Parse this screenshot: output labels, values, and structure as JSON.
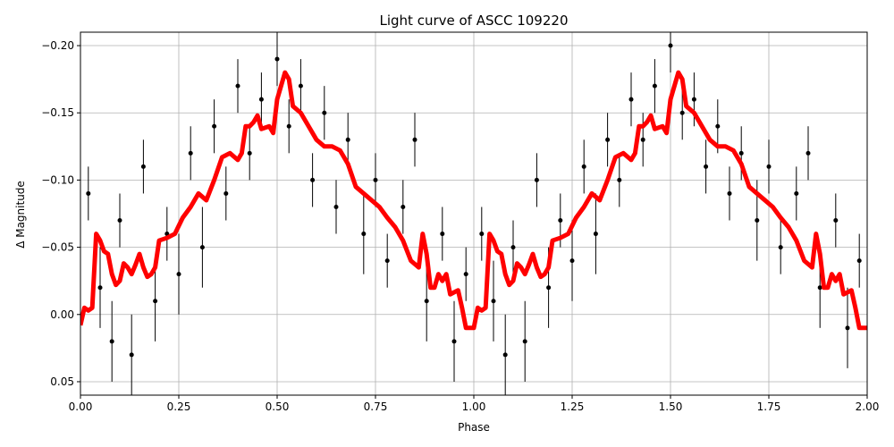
{
  "chart_data": {
    "type": "scatter",
    "title": "Light curve of ASCC 109220",
    "x_label": "Phase",
    "y_label": "Δ Magnitude",
    "xlim": [
      0,
      2
    ],
    "ylim": [
      0.06,
      -0.21
    ],
    "inverted_y": true,
    "grid": true,
    "xticks": [
      {
        "value": 0,
        "label": "0.00"
      },
      {
        "value": 0.25,
        "label": "0.25"
      },
      {
        "value": 0.5,
        "label": "0.50"
      },
      {
        "value": 0.75,
        "label": "0.75"
      },
      {
        "value": 1,
        "label": "1.00"
      },
      {
        "value": 1.25,
        "label": "1.25"
      },
      {
        "value": 1.5,
        "label": "1.50"
      },
      {
        "value": 1.75,
        "label": "1.75"
      },
      {
        "value": 2,
        "label": "2.00"
      }
    ],
    "yticks": [
      {
        "value": -0.2,
        "label": "−0.20"
      },
      {
        "value": -0.15,
        "label": "−0.15"
      },
      {
        "value": -0.1,
        "label": "−0.10"
      },
      {
        "value": -0.05,
        "label": "−0.05"
      },
      {
        "value": 0,
        "label": "0.00"
      },
      {
        "value": 0.05,
        "label": "0.05"
      }
    ],
    "points": {
      "color": "#000000",
      "x": [
        0.02,
        0.05,
        0.08,
        0.1,
        0.13,
        0.16,
        0.19,
        0.22,
        0.25,
        0.28,
        0.31,
        0.34,
        0.37,
        0.4,
        0.43,
        0.46,
        0.5,
        0.53,
        0.56,
        0.59,
        0.62,
        0.65,
        0.68,
        0.72,
        0.75,
        0.78,
        0.82,
        0.85,
        0.88,
        0.92,
        0.95,
        0.98,
        1.02,
        1.05,
        1.08,
        1.1,
        1.13,
        1.16,
        1.19,
        1.22,
        1.25,
        1.28,
        1.31,
        1.34,
        1.37,
        1.4,
        1.43,
        1.46,
        1.5,
        1.53,
        1.56,
        1.59,
        1.62,
        1.65,
        1.68,
        1.72,
        1.75,
        1.78,
        1.82,
        1.85,
        1.88,
        1.92,
        1.95,
        1.98
      ],
      "values": [
        -0.09,
        -0.02,
        0.02,
        -0.07,
        0.03,
        -0.11,
        -0.01,
        -0.06,
        -0.03,
        -0.12,
        -0.05,
        -0.14,
        -0.09,
        -0.17,
        -0.12,
        -0.16,
        -0.19,
        -0.14,
        -0.17,
        -0.1,
        -0.15,
        -0.08,
        -0.13,
        -0.06,
        -0.1,
        -0.04,
        -0.08,
        -0.13,
        -0.01,
        -0.06,
        0.02,
        -0.03,
        -0.06,
        -0.01,
        0.03,
        -0.05,
        0.02,
        -0.1,
        -0.02,
        -0.07,
        -0.04,
        -0.11,
        -0.06,
        -0.13,
        -0.1,
        -0.16,
        -0.13,
        -0.17,
        -0.2,
        -0.15,
        -0.16,
        -0.11,
        -0.14,
        -0.09,
        -0.12,
        -0.07,
        -0.11,
        -0.05,
        -0.09,
        -0.12,
        -0.02,
        -0.07,
        0.01,
        -0.04
      ],
      "errors": [
        0.02,
        0.03,
        0.03,
        0.02,
        0.03,
        0.02,
        0.03,
        0.02,
        0.03,
        0.02,
        0.03,
        0.02,
        0.02,
        0.02,
        0.02,
        0.02,
        0.02,
        0.02,
        0.02,
        0.02,
        0.02,
        0.02,
        0.02,
        0.03,
        0.02,
        0.02,
        0.02,
        0.02,
        0.03,
        0.02,
        0.03,
        0.02,
        0.02,
        0.03,
        0.03,
        0.02,
        0.03,
        0.02,
        0.03,
        0.02,
        0.03,
        0.02,
        0.03,
        0.02,
        0.02,
        0.02,
        0.02,
        0.02,
        0.02,
        0.02,
        0.02,
        0.02,
        0.02,
        0.02,
        0.02,
        0.03,
        0.02,
        0.02,
        0.02,
        0.02,
        0.03,
        0.02,
        0.03,
        0.02
      ]
    },
    "curve": {
      "color": "#ff0000",
      "x": [
        0.0,
        0.01,
        0.02,
        0.03,
        0.04,
        0.05,
        0.06,
        0.07,
        0.08,
        0.09,
        0.1,
        0.11,
        0.12,
        0.13,
        0.14,
        0.15,
        0.16,
        0.17,
        0.18,
        0.19,
        0.2,
        0.22,
        0.24,
        0.26,
        0.28,
        0.3,
        0.32,
        0.34,
        0.36,
        0.38,
        0.4,
        0.41,
        0.42,
        0.43,
        0.44,
        0.45,
        0.46,
        0.48,
        0.49,
        0.5,
        0.52,
        0.53,
        0.54,
        0.56,
        0.58,
        0.6,
        0.62,
        0.64,
        0.66,
        0.68,
        0.7,
        0.72,
        0.74,
        0.76,
        0.78,
        0.8,
        0.82,
        0.84,
        0.86,
        0.87,
        0.88,
        0.89,
        0.9,
        0.91,
        0.92,
        0.93,
        0.94,
        0.96,
        0.97,
        0.98,
        0.99,
        1.0,
        1.01,
        1.02,
        1.03,
        1.04,
        1.05,
        1.06,
        1.07,
        1.08,
        1.09,
        1.1,
        1.11,
        1.12,
        1.13,
        1.14,
        1.15,
        1.16,
        1.17,
        1.18,
        1.19,
        1.2,
        1.22,
        1.24,
        1.26,
        1.28,
        1.3,
        1.32,
        1.34,
        1.36,
        1.38,
        1.4,
        1.41,
        1.42,
        1.43,
        1.44,
        1.45,
        1.46,
        1.48,
        1.49,
        1.5,
        1.52,
        1.53,
        1.54,
        1.56,
        1.58,
        1.6,
        1.62,
        1.64,
        1.66,
        1.68,
        1.7,
        1.72,
        1.74,
        1.76,
        1.78,
        1.8,
        1.82,
        1.84,
        1.86,
        1.87,
        1.88,
        1.89,
        1.9,
        1.91,
        1.92,
        1.93,
        1.94,
        1.96,
        1.97,
        1.98,
        1.99,
        2.0
      ],
      "values": [
        0.008,
        -0.005,
        -0.003,
        -0.005,
        -0.06,
        -0.055,
        -0.047,
        -0.045,
        -0.03,
        -0.022,
        -0.025,
        -0.038,
        -0.035,
        -0.03,
        -0.037,
        -0.045,
        -0.035,
        -0.028,
        -0.03,
        -0.035,
        -0.055,
        -0.057,
        -0.06,
        -0.072,
        -0.08,
        -0.09,
        -0.085,
        -0.1,
        -0.117,
        -0.12,
        -0.115,
        -0.12,
        -0.14,
        -0.14,
        -0.143,
        -0.148,
        -0.138,
        -0.14,
        -0.135,
        -0.16,
        -0.18,
        -0.175,
        -0.155,
        -0.15,
        -0.14,
        -0.13,
        -0.125,
        -0.125,
        -0.122,
        -0.112,
        -0.095,
        -0.09,
        -0.085,
        -0.08,
        -0.072,
        -0.065,
        -0.055,
        -0.04,
        -0.035,
        -0.06,
        -0.045,
        -0.02,
        -0.02,
        -0.03,
        -0.025,
        -0.03,
        -0.015,
        -0.018,
        -0.005,
        0.01,
        0.01,
        0.01,
        -0.005,
        -0.003,
        -0.005,
        -0.06,
        -0.055,
        -0.047,
        -0.045,
        -0.03,
        -0.022,
        -0.025,
        -0.038,
        -0.035,
        -0.03,
        -0.037,
        -0.045,
        -0.035,
        -0.028,
        -0.03,
        -0.035,
        -0.055,
        -0.057,
        -0.06,
        -0.072,
        -0.08,
        -0.09,
        -0.085,
        -0.1,
        -0.117,
        -0.12,
        -0.115,
        -0.12,
        -0.14,
        -0.14,
        -0.143,
        -0.148,
        -0.138,
        -0.14,
        -0.135,
        -0.16,
        -0.18,
        -0.175,
        -0.155,
        -0.15,
        -0.14,
        -0.13,
        -0.125,
        -0.125,
        -0.122,
        -0.112,
        -0.095,
        -0.09,
        -0.085,
        -0.08,
        -0.072,
        -0.065,
        -0.055,
        -0.04,
        -0.035,
        -0.06,
        -0.045,
        -0.02,
        -0.02,
        -0.03,
        -0.025,
        -0.03,
        -0.015,
        -0.018,
        -0.005,
        0.01,
        0.01,
        0.01
      ]
    }
  }
}
